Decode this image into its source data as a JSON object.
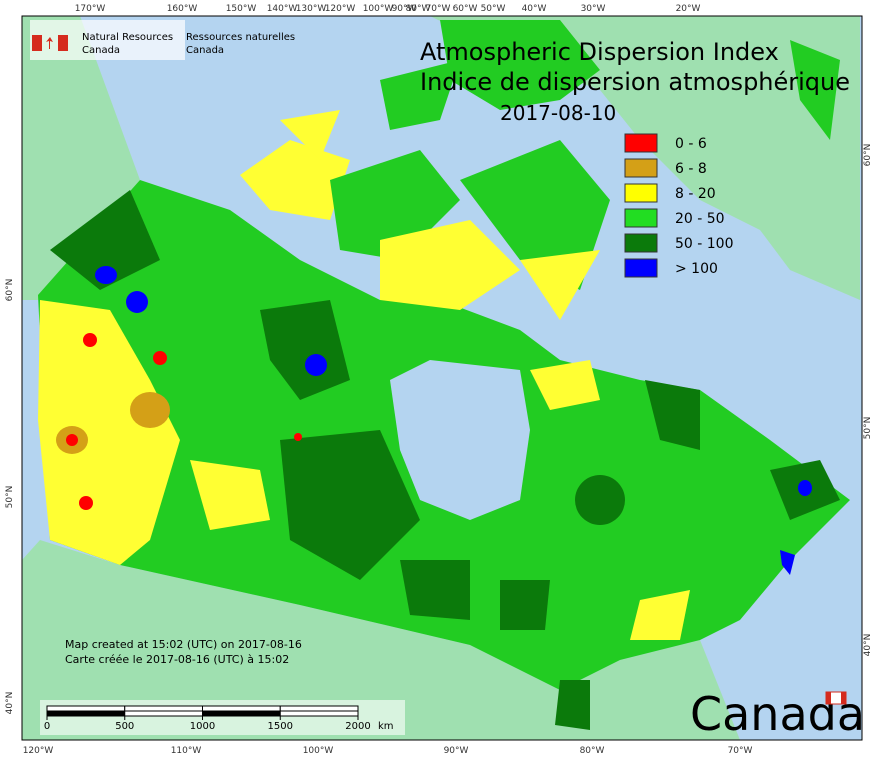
{
  "header": {
    "agency_en": [
      "Natural Resources",
      "Canada"
    ],
    "agency_fr": [
      "Ressources naturelles",
      "Canada"
    ],
    "title_en": "Atmospheric Dispersion Index",
    "title_fr": "Indice de dispersion atmosphérique",
    "date": "2017-08-10"
  },
  "legend": [
    {
      "label": "0 - 6",
      "color": "#ff0000"
    },
    {
      "label": "6 - 8",
      "color": "#d4a017"
    },
    {
      "label": "8 - 20",
      "color": "#ffff00"
    },
    {
      "label": "20 - 50",
      "color": "#22dd22"
    },
    {
      "label": "50 - 100",
      "color": "#0b7a0b"
    },
    {
      "label": "> 100",
      "color": "#0000ff"
    }
  ],
  "top_longitudes": [
    "170°W",
    "160°W",
    "150°W",
    "140°W",
    "130°W",
    "120°W",
    "100°W",
    "90°W",
    "80°W",
    "70°W",
    "60°W",
    "50°W",
    "40°W",
    "30°W",
    "20°W"
  ],
  "bottom_longitudes": [
    "120°W",
    "110°W",
    "100°W",
    "90°W",
    "80°W",
    "70°W"
  ],
  "left_latitudes": [
    "60°N",
    "50°N",
    "40°N"
  ],
  "right_latitudes": [
    "60°N",
    "50°N",
    "40°N"
  ],
  "notes": [
    "Map created at 15:02 (UTC) on 2017-08-16",
    "Carte créée le 2017-08-16 (UTC) à 15:02"
  ],
  "scale_bar": {
    "ticks": [
      0,
      500,
      1000,
      1500,
      2000
    ],
    "unit": "km"
  },
  "wordmark": "Canada"
}
